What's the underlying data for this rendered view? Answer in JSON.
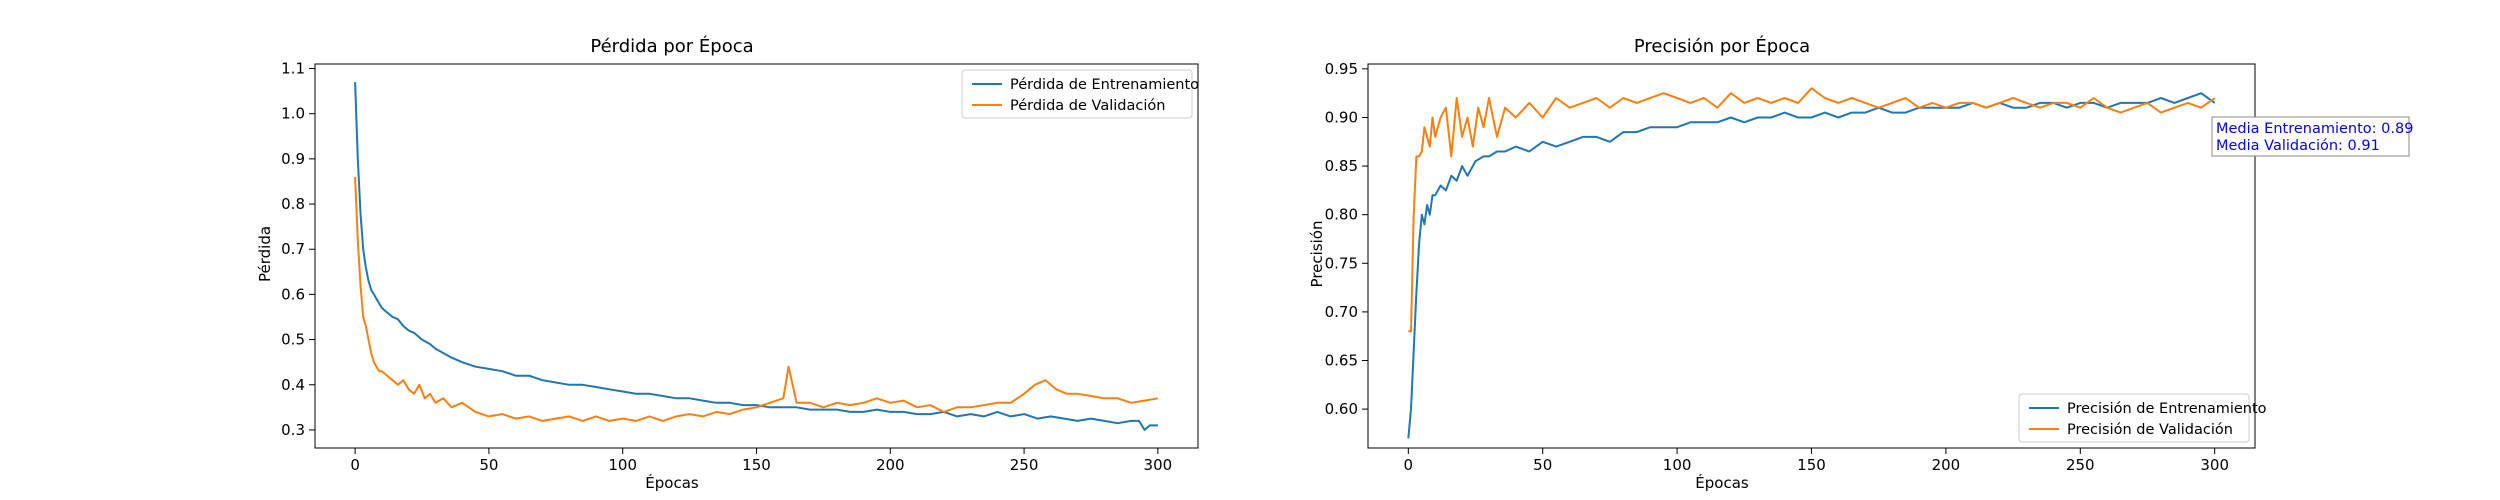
{
  "chart_data": [
    {
      "type": "line",
      "title": "Pérdida por Época",
      "xlabel": "Épocas",
      "ylabel": "Pérdida",
      "xlim": [
        -15,
        315
      ],
      "ylim": [
        0.26,
        1.11
      ],
      "xticks": [
        0,
        50,
        100,
        150,
        200,
        250,
        300
      ],
      "yticks": [
        0.3,
        0.4,
        0.5,
        0.6,
        0.7,
        0.8,
        0.9,
        1.0,
        1.1
      ],
      "ytick_labels": [
        "0.3",
        "0.4",
        "0.5",
        "0.6",
        "0.7",
        "0.8",
        "0.9",
        "1.0",
        "1.1"
      ],
      "grid": false,
      "legend": "top-right",
      "series": [
        {
          "name": "Pérdida de Entrenamiento",
          "color": "#1f77b4",
          "x": [
            0,
            1,
            2,
            3,
            4,
            5,
            6,
            7,
            8,
            9,
            10,
            12,
            14,
            16,
            18,
            20,
            22,
            25,
            28,
            30,
            33,
            36,
            40,
            45,
            50,
            55,
            60,
            65,
            70,
            75,
            80,
            85,
            90,
            95,
            100,
            105,
            110,
            115,
            120,
            125,
            130,
            135,
            140,
            145,
            150,
            155,
            160,
            165,
            170,
            175,
            180,
            185,
            190,
            195,
            200,
            205,
            210,
            215,
            220,
            225,
            230,
            235,
            240,
            245,
            250,
            255,
            260,
            265,
            270,
            275,
            280,
            285,
            290,
            293,
            295,
            297,
            300
          ],
          "y": [
            1.07,
            0.9,
            0.78,
            0.7,
            0.66,
            0.63,
            0.61,
            0.6,
            0.59,
            0.58,
            0.57,
            0.56,
            0.55,
            0.545,
            0.53,
            0.52,
            0.515,
            0.5,
            0.49,
            0.48,
            0.47,
            0.46,
            0.45,
            0.44,
            0.435,
            0.43,
            0.42,
            0.42,
            0.41,
            0.405,
            0.4,
            0.4,
            0.395,
            0.39,
            0.385,
            0.38,
            0.38,
            0.375,
            0.37,
            0.37,
            0.365,
            0.36,
            0.36,
            0.355,
            0.355,
            0.35,
            0.35,
            0.35,
            0.345,
            0.345,
            0.345,
            0.34,
            0.34,
            0.345,
            0.34,
            0.34,
            0.335,
            0.335,
            0.34,
            0.33,
            0.335,
            0.33,
            0.34,
            0.33,
            0.335,
            0.325,
            0.33,
            0.325,
            0.32,
            0.325,
            0.32,
            0.315,
            0.32,
            0.32,
            0.3,
            0.31,
            0.31
          ]
        },
        {
          "name": "Pérdida de Validación",
          "color": "#ff7f0e",
          "x": [
            0,
            1,
            2,
            3,
            4,
            5,
            6,
            7,
            8,
            9,
            10,
            12,
            14,
            16,
            18,
            20,
            22,
            24,
            26,
            28,
            30,
            33,
            36,
            40,
            45,
            50,
            55,
            60,
            65,
            70,
            75,
            80,
            85,
            90,
            95,
            100,
            105,
            110,
            115,
            120,
            125,
            130,
            135,
            140,
            145,
            150,
            155,
            160,
            162,
            165,
            170,
            175,
            180,
            185,
            190,
            195,
            200,
            205,
            210,
            215,
            220,
            225,
            230,
            235,
            240,
            245,
            250,
            254,
            258,
            262,
            266,
            270,
            275,
            280,
            285,
            290,
            295,
            300
          ],
          "y": [
            0.86,
            0.72,
            0.62,
            0.55,
            0.53,
            0.5,
            0.47,
            0.45,
            0.44,
            0.43,
            0.43,
            0.42,
            0.41,
            0.4,
            0.41,
            0.39,
            0.38,
            0.4,
            0.37,
            0.38,
            0.36,
            0.37,
            0.35,
            0.36,
            0.34,
            0.33,
            0.335,
            0.325,
            0.33,
            0.32,
            0.325,
            0.33,
            0.32,
            0.33,
            0.32,
            0.325,
            0.32,
            0.33,
            0.32,
            0.33,
            0.335,
            0.33,
            0.34,
            0.335,
            0.345,
            0.35,
            0.36,
            0.37,
            0.44,
            0.36,
            0.36,
            0.35,
            0.36,
            0.355,
            0.36,
            0.37,
            0.36,
            0.365,
            0.35,
            0.355,
            0.34,
            0.35,
            0.35,
            0.355,
            0.36,
            0.36,
            0.38,
            0.4,
            0.41,
            0.39,
            0.38,
            0.38,
            0.375,
            0.37,
            0.37,
            0.36,
            0.365,
            0.37
          ]
        }
      ]
    },
    {
      "type": "line",
      "title": "Precisión por Época",
      "xlabel": "Épocas",
      "ylabel": "Precisión",
      "xlim": [
        -15,
        315
      ],
      "ylim": [
        0.56,
        0.955
      ],
      "xticks": [
        0,
        50,
        100,
        150,
        200,
        250,
        300
      ],
      "yticks": [
        0.6,
        0.65,
        0.7,
        0.75,
        0.8,
        0.85,
        0.9,
        0.95
      ],
      "ytick_labels": [
        "0.60",
        "0.65",
        "0.70",
        "0.75",
        "0.80",
        "0.85",
        "0.90",
        "0.95"
      ],
      "grid": false,
      "legend": "bottom-right",
      "annotation": [
        "Media Entrenamiento: 0.89",
        "Media Validación: 0.91"
      ],
      "annotation_color": "#0000ff",
      "series": [
        {
          "name": "Precisión de Entrenamiento",
          "color": "#1f77b4",
          "x": [
            0,
            1,
            2,
            3,
            4,
            5,
            6,
            7,
            8,
            9,
            10,
            12,
            14,
            16,
            18,
            20,
            22,
            25,
            28,
            30,
            33,
            36,
            40,
            45,
            50,
            55,
            60,
            65,
            70,
            75,
            80,
            85,
            90,
            95,
            100,
            105,
            110,
            115,
            120,
            125,
            130,
            135,
            140,
            145,
            150,
            155,
            160,
            165,
            170,
            175,
            180,
            185,
            190,
            195,
            200,
            205,
            210,
            215,
            220,
            225,
            230,
            235,
            240,
            245,
            250,
            255,
            260,
            265,
            270,
            275,
            280,
            285,
            290,
            295,
            300
          ],
          "y": [
            0.57,
            0.6,
            0.66,
            0.72,
            0.77,
            0.8,
            0.79,
            0.81,
            0.8,
            0.82,
            0.82,
            0.83,
            0.825,
            0.84,
            0.835,
            0.85,
            0.84,
            0.855,
            0.86,
            0.86,
            0.865,
            0.865,
            0.87,
            0.865,
            0.875,
            0.87,
            0.875,
            0.88,
            0.88,
            0.875,
            0.885,
            0.885,
            0.89,
            0.89,
            0.89,
            0.895,
            0.895,
            0.895,
            0.9,
            0.895,
            0.9,
            0.9,
            0.905,
            0.9,
            0.9,
            0.905,
            0.9,
            0.905,
            0.905,
            0.91,
            0.905,
            0.905,
            0.91,
            0.91,
            0.91,
            0.91,
            0.915,
            0.91,
            0.915,
            0.91,
            0.91,
            0.915,
            0.915,
            0.91,
            0.915,
            0.915,
            0.91,
            0.915,
            0.915,
            0.915,
            0.92,
            0.915,
            0.92,
            0.925,
            0.915
          ]
        },
        {
          "name": "Precisión de Validación",
          "color": "#ff7f0e",
          "x": [
            0,
            1,
            2,
            3,
            4,
            5,
            6,
            7,
            8,
            9,
            10,
            12,
            14,
            16,
            18,
            20,
            22,
            24,
            26,
            28,
            30,
            33,
            36,
            40,
            45,
            50,
            55,
            60,
            65,
            70,
            75,
            80,
            85,
            90,
            95,
            100,
            105,
            110,
            115,
            120,
            125,
            130,
            135,
            140,
            145,
            150,
            155,
            160,
            165,
            170,
            175,
            180,
            185,
            190,
            195,
            200,
            205,
            210,
            215,
            220,
            225,
            230,
            235,
            240,
            245,
            250,
            255,
            260,
            265,
            270,
            275,
            280,
            285,
            290,
            295,
            300
          ],
          "y": [
            0.68,
            0.68,
            0.8,
            0.86,
            0.86,
            0.865,
            0.89,
            0.88,
            0.87,
            0.9,
            0.88,
            0.9,
            0.91,
            0.86,
            0.92,
            0.88,
            0.9,
            0.87,
            0.91,
            0.89,
            0.92,
            0.88,
            0.91,
            0.9,
            0.915,
            0.9,
            0.92,
            0.91,
            0.915,
            0.92,
            0.91,
            0.92,
            0.915,
            0.92,
            0.925,
            0.92,
            0.915,
            0.92,
            0.91,
            0.925,
            0.915,
            0.92,
            0.915,
            0.92,
            0.915,
            0.93,
            0.92,
            0.915,
            0.92,
            0.915,
            0.91,
            0.915,
            0.92,
            0.91,
            0.915,
            0.91,
            0.915,
            0.915,
            0.91,
            0.915,
            0.92,
            0.915,
            0.91,
            0.915,
            0.915,
            0.91,
            0.92,
            0.91,
            0.905,
            0.91,
            0.915,
            0.905,
            0.91,
            0.915,
            0.91,
            0.92
          ]
        }
      ]
    }
  ]
}
